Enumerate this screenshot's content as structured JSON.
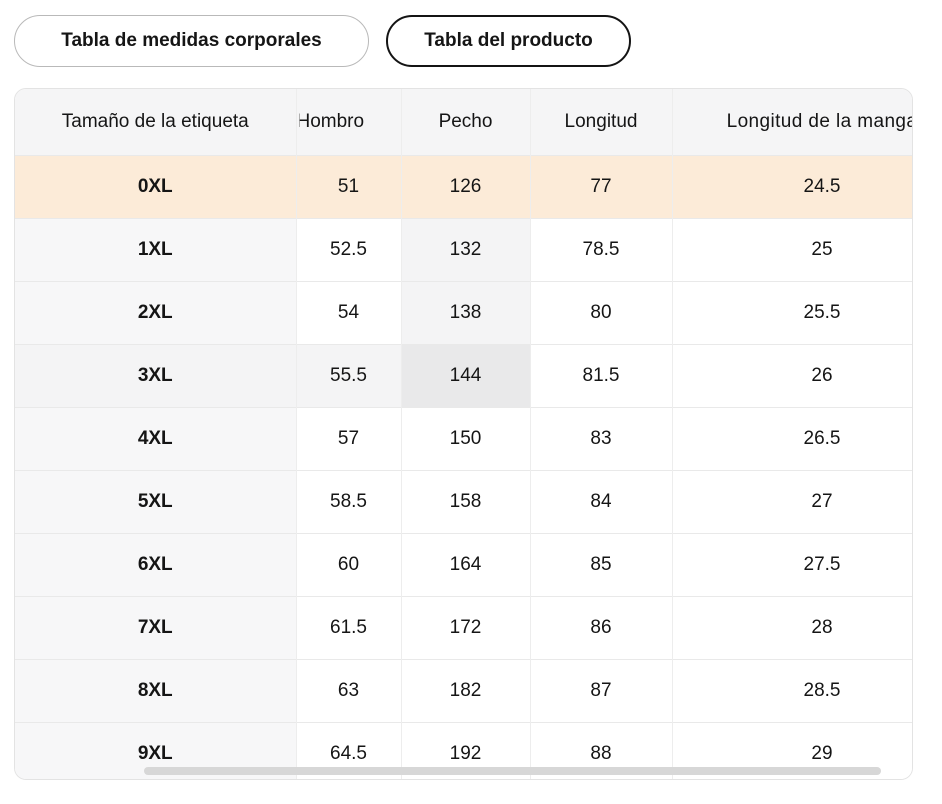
{
  "tabs": [
    {
      "label": "Tabla de medidas corporales",
      "selected": false
    },
    {
      "label": "Tabla del producto",
      "selected": true
    }
  ],
  "table": {
    "columns": [
      "Tamaño de la etiqueta",
      "Hombro",
      "Pecho",
      "Longitud",
      "Longitud de la manga"
    ],
    "rows": [
      {
        "size": "0XL",
        "values": [
          "51",
          "126",
          "77",
          "24.5"
        ]
      },
      {
        "size": "1XL",
        "values": [
          "52.5",
          "132",
          "78.5",
          "25"
        ]
      },
      {
        "size": "2XL",
        "values": [
          "54",
          "138",
          "80",
          "25.5"
        ]
      },
      {
        "size": "3XL",
        "values": [
          "55.5",
          "144",
          "81.5",
          "26"
        ]
      },
      {
        "size": "4XL",
        "values": [
          "57",
          "150",
          "83",
          "26.5"
        ]
      },
      {
        "size": "5XL",
        "values": [
          "58.5",
          "158",
          "84",
          "27"
        ]
      },
      {
        "size": "6XL",
        "values": [
          "60",
          "164",
          "85",
          "27.5"
        ]
      },
      {
        "size": "7XL",
        "values": [
          "61.5",
          "172",
          "86",
          "28"
        ]
      },
      {
        "size": "8XL",
        "values": [
          "63",
          "182",
          "87",
          "28.5"
        ]
      },
      {
        "size": "9XL",
        "values": [
          "64.5",
          "192",
          "88",
          "29"
        ]
      }
    ],
    "selected_row": "0XL",
    "hover": {
      "row": "3XL",
      "column": "Pecho",
      "row_index": 3,
      "col_index": 2
    }
  },
  "colors": {
    "selected_row_bg": "#fcebd8",
    "header_bg": "#f5f5f6",
    "sticky_col_bg": "#f7f7f8",
    "hover_light": "#f4f4f5",
    "hover_strong": "#e9e9ea",
    "tab_border": "#b9b9b9",
    "tab_selected_border": "#141414",
    "scrollbar_thumb": "#d7d7d7"
  }
}
